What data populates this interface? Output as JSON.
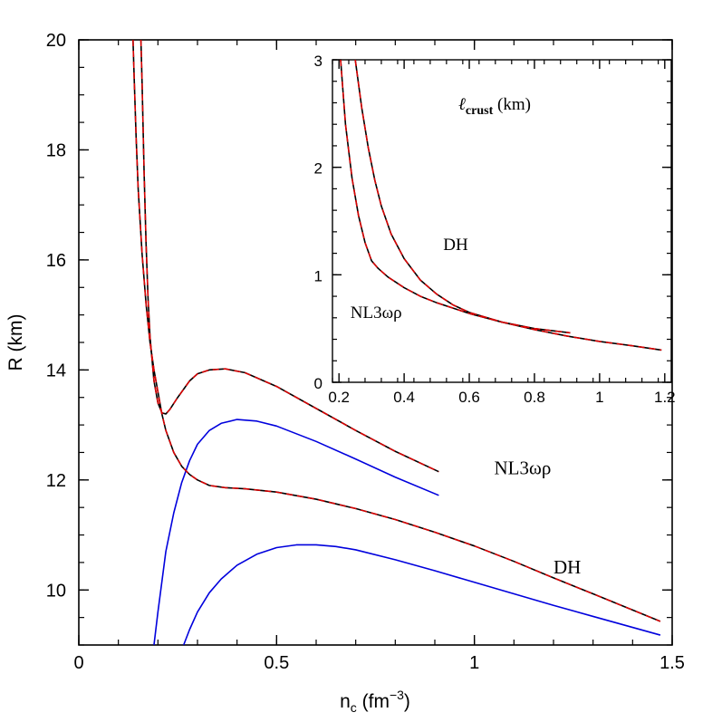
{
  "chart_data": [
    {
      "id": "main",
      "type": "line",
      "xlabel": "n_c (fm^-3)",
      "xlabel_parts": {
        "main": "n",
        "sub": "c",
        "unit_open": " (fm",
        "sup": "−3",
        "unit_close": ")"
      },
      "ylabel": "R (km)",
      "xlim": [
        0,
        1.5
      ],
      "ylim": [
        9,
        20
      ],
      "xticks": [
        0,
        0.5,
        1,
        1.5
      ],
      "xtick_labels": [
        "0",
        "0.5",
        "1",
        "1.5"
      ],
      "yticks": [
        10,
        12,
        14,
        16,
        18,
        20
      ],
      "ytick_labels": [
        "10",
        "12",
        "14",
        "16",
        "18",
        "20"
      ],
      "annotations": [
        {
          "text": "NL3ωρ",
          "x": 1.05,
          "y": 12.1
        },
        {
          "text": "DH",
          "x": 1.2,
          "y": 10.3
        }
      ],
      "series": [
        {
          "label": "NL3ωρ",
          "color": "#000000",
          "style": "solid",
          "x": [
            0.157,
            0.16,
            0.165,
            0.17,
            0.175,
            0.18,
            0.19,
            0.2,
            0.21,
            0.22,
            0.23,
            0.25,
            0.28,
            0.3,
            0.33,
            0.37,
            0.42,
            0.5,
            0.6,
            0.7,
            0.8,
            0.91
          ],
          "y": [
            20.0,
            19.2,
            17.6,
            16.3,
            15.3,
            14.6,
            13.8,
            13.4,
            13.22,
            13.2,
            13.28,
            13.5,
            13.8,
            13.93,
            14.0,
            14.02,
            13.95,
            13.7,
            13.3,
            12.9,
            12.52,
            12.15
          ]
        },
        {
          "label": "NL3ωρ",
          "color": "#e00000",
          "style": "dashed",
          "x": [
            0.157,
            0.16,
            0.165,
            0.17,
            0.175,
            0.18,
            0.19,
            0.2,
            0.21,
            0.22,
            0.23,
            0.25,
            0.28,
            0.3,
            0.33,
            0.37,
            0.42,
            0.5,
            0.6,
            0.7,
            0.8,
            0.91
          ],
          "y": [
            20.0,
            19.2,
            17.6,
            16.3,
            15.3,
            14.6,
            13.8,
            13.4,
            13.22,
            13.2,
            13.28,
            13.5,
            13.8,
            13.93,
            14.0,
            14.02,
            13.95,
            13.7,
            13.3,
            12.9,
            12.52,
            12.15
          ]
        },
        {
          "label": "DH",
          "color": "#000000",
          "style": "solid",
          "x": [
            0.137,
            0.14,
            0.145,
            0.15,
            0.16,
            0.17,
            0.18,
            0.19,
            0.2,
            0.21,
            0.22,
            0.24,
            0.26,
            0.28,
            0.3,
            0.33,
            0.37,
            0.42,
            0.5,
            0.6,
            0.7,
            0.8,
            0.9,
            1.0,
            1.1,
            1.2,
            1.3,
            1.47
          ],
          "y": [
            20.0,
            19.3,
            18.2,
            17.3,
            16.1,
            15.2,
            14.5,
            14.0,
            13.6,
            13.2,
            12.9,
            12.5,
            12.25,
            12.1,
            12.0,
            11.9,
            11.86,
            11.84,
            11.78,
            11.65,
            11.48,
            11.28,
            11.05,
            10.8,
            10.52,
            10.22,
            9.93,
            9.43
          ]
        },
        {
          "label": "DH",
          "color": "#e00000",
          "style": "dashed",
          "x": [
            0.137,
            0.14,
            0.145,
            0.15,
            0.16,
            0.17,
            0.18,
            0.19,
            0.2,
            0.21,
            0.22,
            0.24,
            0.26,
            0.28,
            0.3,
            0.33,
            0.37,
            0.42,
            0.5,
            0.6,
            0.7,
            0.8,
            0.9,
            1.0,
            1.1,
            1.2,
            1.3,
            1.47
          ],
          "y": [
            20.0,
            19.3,
            18.2,
            17.3,
            16.1,
            15.2,
            14.5,
            14.0,
            13.6,
            13.2,
            12.9,
            12.5,
            12.25,
            12.1,
            12.0,
            11.9,
            11.86,
            11.84,
            11.78,
            11.65,
            11.48,
            11.28,
            11.05,
            10.8,
            10.52,
            10.22,
            9.93,
            9.43
          ]
        },
        {
          "label": "NL3ωρ",
          "color": "#0000dd",
          "style": "solid",
          "x": [
            0.19,
            0.2,
            0.22,
            0.24,
            0.26,
            0.28,
            0.3,
            0.33,
            0.36,
            0.4,
            0.45,
            0.5,
            0.6,
            0.7,
            0.8,
            0.91
          ],
          "y": [
            9.0,
            9.6,
            10.7,
            11.4,
            11.95,
            12.35,
            12.65,
            12.9,
            13.03,
            13.1,
            13.07,
            12.98,
            12.7,
            12.38,
            12.05,
            11.72
          ]
        },
        {
          "label": "DH",
          "color": "#0000dd",
          "style": "solid",
          "x": [
            0.265,
            0.28,
            0.3,
            0.33,
            0.36,
            0.4,
            0.45,
            0.5,
            0.55,
            0.6,
            0.65,
            0.7,
            0.8,
            0.9,
            1.0,
            1.1,
            1.2,
            1.3,
            1.47
          ],
          "y": [
            9.0,
            9.28,
            9.6,
            9.95,
            10.2,
            10.45,
            10.65,
            10.77,
            10.82,
            10.82,
            10.79,
            10.73,
            10.55,
            10.35,
            10.14,
            9.93,
            9.72,
            9.52,
            9.18
          ]
        }
      ]
    },
    {
      "id": "inset",
      "type": "line",
      "title": "l_crust (km)",
      "title_parts": {
        "main": "ℓ",
        "sub": "crust",
        "rest": " (km)"
      },
      "xlim": [
        0.18,
        1.22
      ],
      "ylim": [
        0,
        3
      ],
      "xticks": [
        0.2,
        0.4,
        0.6,
        0.8,
        1,
        1.2
      ],
      "xtick_labels": [
        "0.2",
        "0.4",
        "0.6",
        "0.8",
        "1",
        "1.2"
      ],
      "yticks": [
        0,
        1,
        2,
        3
      ],
      "ytick_labels": [
        "0",
        "1",
        "2",
        "3"
      ],
      "annotations": [
        {
          "text": "DH",
          "x": 0.52,
          "y": 1.23
        },
        {
          "text": "NL3ωρ",
          "x": 0.235,
          "y": 0.6
        }
      ],
      "series": [
        {
          "label": "DH",
          "color": "#000000",
          "style": "solid",
          "x": [
            0.205,
            0.22,
            0.24,
            0.26,
            0.28,
            0.3,
            0.32,
            0.35,
            0.4,
            0.45,
            0.5,
            0.6,
            0.7,
            0.8,
            0.9,
            1.0,
            1.1,
            1.19
          ],
          "y": [
            3.0,
            2.4,
            1.9,
            1.55,
            1.3,
            1.13,
            1.06,
            0.98,
            0.88,
            0.8,
            0.74,
            0.64,
            0.56,
            0.49,
            0.43,
            0.38,
            0.34,
            0.3
          ]
        },
        {
          "label": "DH",
          "color": "#e00000",
          "style": "dashed",
          "x": [
            0.205,
            0.22,
            0.24,
            0.26,
            0.28,
            0.3,
            0.32,
            0.35,
            0.4,
            0.45,
            0.5,
            0.6,
            0.7,
            0.8,
            0.9,
            1.0,
            1.1,
            1.19
          ],
          "y": [
            3.0,
            2.4,
            1.9,
            1.55,
            1.3,
            1.13,
            1.06,
            0.98,
            0.88,
            0.8,
            0.74,
            0.64,
            0.56,
            0.49,
            0.43,
            0.38,
            0.34,
            0.3
          ]
        },
        {
          "label": "NL3ωρ",
          "color": "#000000",
          "style": "solid",
          "x": [
            0.25,
            0.27,
            0.29,
            0.31,
            0.33,
            0.36,
            0.4,
            0.45,
            0.5,
            0.55,
            0.6,
            0.7,
            0.8,
            0.91
          ],
          "y": [
            3.0,
            2.55,
            2.18,
            1.88,
            1.64,
            1.38,
            1.15,
            0.95,
            0.82,
            0.72,
            0.65,
            0.56,
            0.5,
            0.46
          ]
        },
        {
          "label": "NL3ωρ",
          "color": "#e00000",
          "style": "dashed",
          "x": [
            0.25,
            0.27,
            0.29,
            0.31,
            0.33,
            0.36,
            0.4,
            0.45,
            0.5,
            0.55,
            0.6,
            0.7,
            0.8,
            0.91
          ],
          "y": [
            3.0,
            2.55,
            2.18,
            1.88,
            1.64,
            1.38,
            1.15,
            0.95,
            0.82,
            0.72,
            0.65,
            0.56,
            0.5,
            0.46
          ]
        }
      ]
    }
  ]
}
